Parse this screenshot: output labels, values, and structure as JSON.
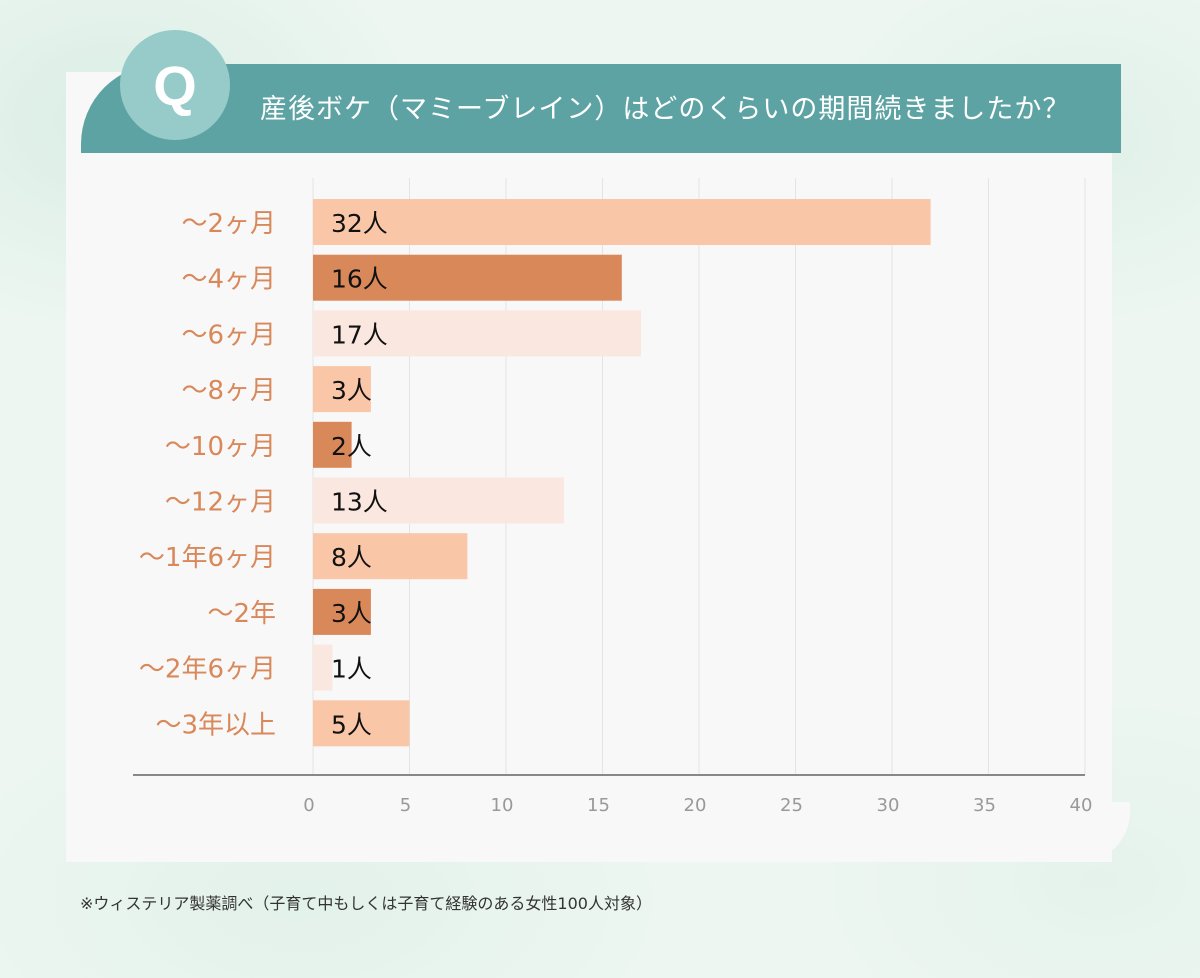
{
  "header": {
    "q_label": "Q",
    "question": "産後ボケ（マミーブレイン）はどのくらいの期間続きましたか？"
  },
  "chart_data": {
    "type": "bar",
    "orientation": "horizontal",
    "categories": [
      "〜2ヶ月",
      "〜4ヶ月",
      "〜6ヶ月",
      "〜8ヶ月",
      "〜10ヶ月",
      "〜12ヶ月",
      "〜1年6ヶ月",
      "〜2年",
      "〜2年6ヶ月",
      "〜3年以上"
    ],
    "values": [
      32,
      16,
      17,
      3,
      2,
      13,
      8,
      3,
      1,
      5
    ],
    "data_labels": [
      "32人",
      "16人",
      "17人",
      "3人",
      "2人",
      "13人",
      "8人",
      "3人",
      "1人",
      "5人"
    ],
    "bar_colors": [
      "#f9c7a8",
      "#d9885a",
      "#fae7df",
      "#f9c7a8",
      "#d9885a",
      "#fae7df",
      "#f9c7a8",
      "#d9885a",
      "#fae7df",
      "#f9c7a8"
    ],
    "xlim": [
      0,
      40
    ],
    "xticks": [
      "0",
      "5",
      "10",
      "15",
      "20",
      "25",
      "30",
      "35",
      "40"
    ],
    "grid": true,
    "category_label_color": "#d9885a",
    "title": "",
    "xlabel": "",
    "ylabel": ""
  },
  "footnote": "※ウィステリア製薬調べ（子育て中もしくは子育て経験のある女性100人対象）",
  "colors": {
    "header": "#5ea3a3",
    "q_circle": "#96cbc9",
    "grid": "#e4e4e4",
    "axis": "#888888",
    "tick_label": "#999999"
  }
}
